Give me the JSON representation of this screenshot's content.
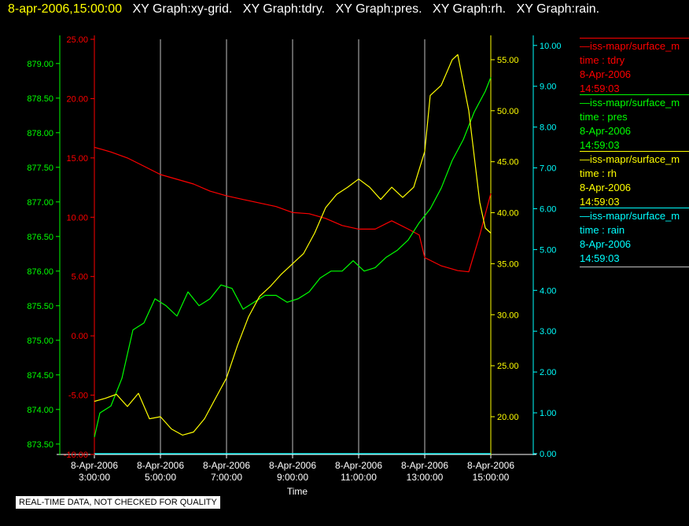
{
  "header": {
    "timestamp": "8-apr-2006,15:00:00",
    "tabs": [
      "XY Graph:xy-grid.",
      "XY Graph:tdry.",
      "XY Graph:pres.",
      "XY Graph:rh.",
      "XY Graph:rain."
    ]
  },
  "legend": [
    {
      "id": "tdry",
      "name": "—iss-mapr/surface_m",
      "field": "time : tdry",
      "date": "8-Apr-2006",
      "time": "14:59:03",
      "color": "#ff0000"
    },
    {
      "id": "pres",
      "name": "—iss-mapr/surface_m",
      "field": "time : pres",
      "date": "8-Apr-2006",
      "time": "14:59:03",
      "color": "#00ff00"
    },
    {
      "id": "rh",
      "name": "—iss-mapr/surface_m",
      "field": "time : rh",
      "date": "8-Apr-2006",
      "time": "14:59:03",
      "color": "#ffff00"
    },
    {
      "id": "rain",
      "name": "—iss-mapr/surface_m",
      "field": "time : rain",
      "date": "8-Apr-2006",
      "time": "14:59:03",
      "color": "#00ffff"
    }
  ],
  "disclaimer": "REAL-TIME DATA, NOT CHECKED FOR QUALITY",
  "colors": {
    "background": "#000000",
    "axis": "#ffffff",
    "grid": "#c0c0c0",
    "tdry": "#ff0000",
    "pres": "#00ff00",
    "rh": "#ffff00",
    "rain": "#00ffff"
  },
  "chart_data": {
    "type": "line",
    "xlabel": "Time",
    "x_ticks": [
      "8-Apr-2006\n3:00:00",
      "8-Apr-2006\n5:00:00",
      "8-Apr-2006\n7:00:00",
      "8-Apr-2006\n9:00:00",
      "8-Apr-2006\n11:00:00",
      "8-Apr-2006\n13:00:00",
      "8-Apr-2006\n15:00:00"
    ],
    "xlim": [
      "2006-04-08 03:00",
      "2006-04-08 15:00"
    ],
    "grid": true,
    "axes": [
      {
        "id": "pres",
        "ylim": [
          873.35,
          879.35
        ],
        "ticks": [
          "873.50",
          "874.00",
          "874.50",
          "875.00",
          "875.50",
          "876.00",
          "876.50",
          "877.00",
          "877.50",
          "878.00",
          "878.50",
          "879.00"
        ],
        "color": "#00ff00"
      },
      {
        "id": "tdry",
        "ylim": [
          -10,
          25
        ],
        "ticks": [
          "-10.00",
          "-5.00",
          "0.00",
          "5.00",
          "10.00",
          "15.00",
          "20.00",
          "25.00"
        ],
        "color": "#ff0000"
      },
      {
        "id": "rh",
        "ylim": [
          16.3,
          57
        ],
        "ticks": [
          "20.00",
          "25.00",
          "30.00",
          "35.00",
          "40.00",
          "45.00",
          "50.00",
          "55.00"
        ],
        "color": "#ffff00"
      },
      {
        "id": "rain",
        "ylim": [
          -0.02,
          10.15
        ],
        "ticks": [
          "0.00",
          "1.00",
          "2.00",
          "3.00",
          "4.00",
          "5.00",
          "6.00",
          "7.00",
          "8.00",
          "9.00",
          "10.00"
        ],
        "color": "#00ffff"
      }
    ],
    "series": [
      {
        "id": "tdry",
        "axis": "tdry",
        "x": [
          "03:00",
          "03:30",
          "04:00",
          "04:30",
          "05:00",
          "05:30",
          "06:00",
          "06:30",
          "07:00",
          "07:30",
          "08:00",
          "08:30",
          "09:00",
          "09:30",
          "10:00",
          "10:30",
          "11:00",
          "11:30",
          "12:00",
          "12:30",
          "12:50",
          "13:00",
          "13:30",
          "14:00",
          "14:20",
          "14:40",
          "15:00"
        ],
        "y": [
          15.9,
          15.5,
          15.0,
          14.3,
          13.6,
          13.2,
          12.8,
          12.2,
          11.8,
          11.5,
          11.2,
          10.9,
          10.4,
          10.3,
          9.9,
          9.3,
          9.0,
          9.0,
          9.7,
          9.0,
          8.5,
          6.6,
          5.9,
          5.5,
          5.4,
          8.5,
          12.0
        ]
      },
      {
        "id": "pres",
        "axis": "pres",
        "x": [
          "03:00",
          "03:10",
          "03:30",
          "03:50",
          "04:10",
          "04:30",
          "04:50",
          "05:10",
          "05:30",
          "05:50",
          "06:10",
          "06:30",
          "06:50",
          "07:10",
          "07:30",
          "07:50",
          "08:10",
          "08:30",
          "08:50",
          "09:10",
          "09:30",
          "09:50",
          "10:10",
          "10:30",
          "10:50",
          "11:10",
          "11:30",
          "11:50",
          "12:10",
          "12:30",
          "12:50",
          "13:10",
          "13:30",
          "13:50",
          "14:10",
          "14:30",
          "14:50",
          "15:00"
        ],
        "y": [
          873.6,
          873.95,
          874.05,
          874.45,
          875.15,
          875.25,
          875.6,
          875.5,
          875.35,
          875.7,
          875.5,
          875.6,
          875.8,
          875.75,
          875.45,
          875.55,
          875.65,
          875.65,
          875.55,
          875.6,
          875.7,
          875.9,
          876.0,
          876.0,
          876.15,
          876.0,
          876.05,
          876.2,
          876.3,
          876.45,
          876.7,
          876.9,
          877.2,
          877.6,
          877.9,
          878.3,
          878.6,
          878.8
        ]
      },
      {
        "id": "rh",
        "axis": "rh",
        "x": [
          "03:00",
          "03:20",
          "03:40",
          "04:00",
          "04:20",
          "04:40",
          "05:00",
          "05:20",
          "05:40",
          "06:00",
          "06:20",
          "06:40",
          "07:00",
          "07:20",
          "07:40",
          "08:00",
          "08:20",
          "08:40",
          "09:00",
          "09:20",
          "09:40",
          "10:00",
          "10:20",
          "10:40",
          "11:00",
          "11:20",
          "11:40",
          "12:00",
          "12:20",
          "12:40",
          "13:00",
          "13:10",
          "13:30",
          "13:50",
          "14:00",
          "14:20",
          "14:40",
          "14:50",
          "15:00"
        ],
        "y": [
          21.5,
          21.8,
          22.2,
          21.0,
          22.3,
          19.8,
          20.0,
          18.8,
          18.2,
          18.5,
          19.8,
          21.8,
          23.8,
          27.0,
          29.8,
          31.8,
          32.8,
          34.0,
          35.0,
          36.0,
          38.0,
          40.5,
          41.8,
          42.5,
          43.3,
          42.5,
          41.3,
          42.5,
          41.5,
          42.5,
          46.0,
          51.5,
          52.5,
          55.0,
          55.5,
          50.0,
          41.0,
          38.5,
          38.0
        ]
      },
      {
        "id": "rain",
        "axis": "rain",
        "x": [
          "03:00",
          "15:00"
        ],
        "y": [
          0,
          0
        ]
      }
    ]
  }
}
